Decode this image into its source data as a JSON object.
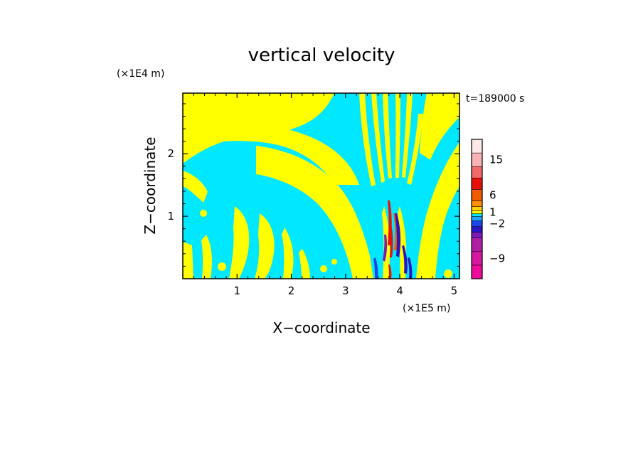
{
  "chart_data": {
    "type": "heatmap",
    "title": "vertical velocity",
    "xlabel": "X−coordinate",
    "ylabel": "Z−coordinate",
    "x_scale_label": "(×1E5 m)",
    "y_scale_label": "(×1E4 m)",
    "time_label": "t=189000 s",
    "xlim": [
      0,
      5.1
    ],
    "ylim": [
      0,
      2.97
    ],
    "x_ticks": [
      1,
      2,
      3,
      4,
      5
    ],
    "x_tick_labels": [
      "1",
      "2",
      "3",
      "4",
      "5"
    ],
    "y_ticks": [
      1,
      2
    ],
    "y_tick_labels": [
      "1",
      "2"
    ],
    "colorbar": {
      "levels": [
        {
          "label": "",
          "color": "#ee0c9c"
        },
        {
          "label": "-9",
          "color": "#d5189e"
        },
        {
          "label": "",
          "color": "#b01ea6"
        },
        {
          "label": "",
          "color": "#7c1ab8"
        },
        {
          "label": "",
          "color": "#2b14c4"
        },
        {
          "label": "-2",
          "color": "#1c44e6"
        },
        {
          "label": "",
          "color": "#1ea8ff"
        },
        {
          "label": "",
          "color": "#00e8ff"
        },
        {
          "label": "1",
          "color": "#ffff00"
        },
        {
          "label": "",
          "color": "#ffd400"
        },
        {
          "label": "",
          "color": "#ff9000"
        },
        {
          "label": "6",
          "color": "#f05a00"
        },
        {
          "label": "",
          "color": "#e8110a"
        },
        {
          "label": "",
          "color": "#f06a6a"
        },
        {
          "label": "15",
          "color": "#f7b3b3"
        },
        {
          "label": "",
          "color": "#fde8e8"
        }
      ]
    },
    "field": {
      "dominant_positive_color": "#ffff00",
      "dominant_negative_color": "#00e8ff",
      "strong_updraft_color": "#e8110a",
      "strong_downdraft_color": "#2b14c4",
      "updraft_core_x": 3.9,
      "updraft_core_z_range": [
        0.3,
        1.3
      ]
    }
  }
}
